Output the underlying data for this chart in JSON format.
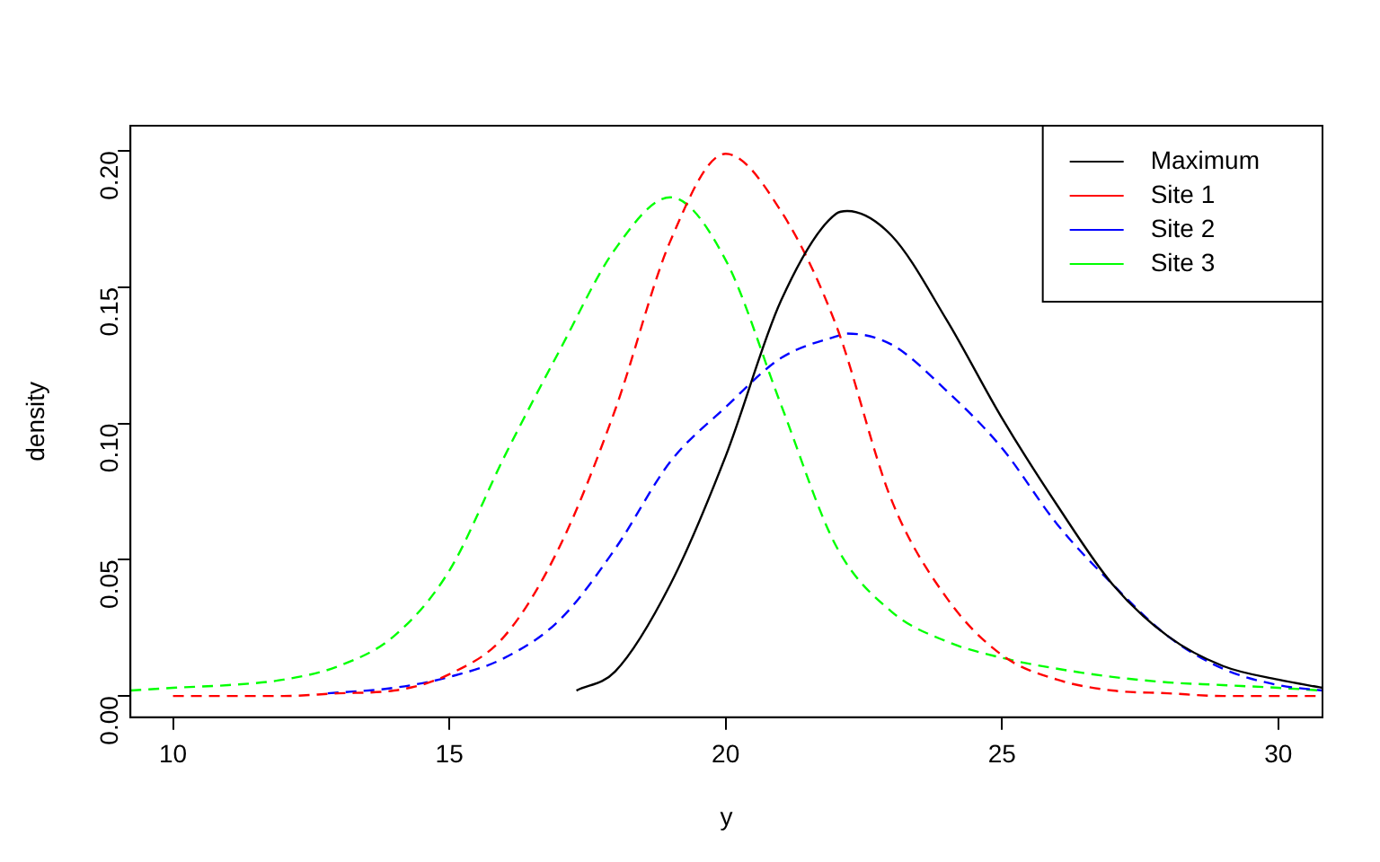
{
  "chart_data": {
    "type": "line",
    "xlabel": "y",
    "ylabel": "density",
    "xlim": [
      9.23,
      30.8
    ],
    "ylim": [
      -0.0078,
      0.2093
    ],
    "xticks": [
      10,
      15,
      20,
      25,
      30
    ],
    "yticks": [
      {
        "value": 0,
        "label": "0.00"
      },
      {
        "value": 0.05,
        "label": "0.05"
      },
      {
        "value": 0.1,
        "label": "0.10"
      },
      {
        "value": 0.15,
        "label": "0.15"
      },
      {
        "value": 0.2,
        "label": "0.20"
      }
    ],
    "grid": false,
    "legend": "top right",
    "marker": "none",
    "series": [
      {
        "name": "Maximum",
        "color": "#000000",
        "line_style": "solid",
        "x": [
          17.3,
          18,
          19,
          20,
          21,
          22,
          22.2,
          23,
          24,
          25,
          26,
          27,
          28,
          29,
          30,
          30.8
        ],
        "values": [
          0.002,
          0.009,
          0.041,
          0.088,
          0.145,
          0.177,
          0.178,
          0.169,
          0.138,
          0.102,
          0.07,
          0.041,
          0.022,
          0.011,
          0.006,
          0.003
        ]
      },
      {
        "name": "Site 1",
        "color": "#ff0000",
        "line_style": "dashed",
        "x": [
          10,
          11,
          12,
          13,
          14,
          15,
          16,
          17,
          18,
          19,
          20,
          21,
          22,
          23,
          24,
          25,
          26,
          27,
          28,
          29,
          30,
          30.8
        ],
        "values": [
          0,
          0,
          0,
          0.001,
          0.002,
          0.008,
          0.022,
          0.055,
          0.105,
          0.167,
          0.199,
          0.178,
          0.136,
          0.072,
          0.036,
          0.015,
          0.006,
          0.002,
          0.001,
          0,
          0,
          0
        ]
      },
      {
        "name": "Site 2",
        "color": "#0000ff",
        "line_style": "dashed",
        "x": [
          12.8,
          14,
          15,
          16,
          17,
          18,
          19,
          20,
          21,
          22,
          22.2,
          23,
          24,
          25,
          26,
          27,
          28,
          29,
          30,
          30.8
        ],
        "values": [
          0.001,
          0.003,
          0.007,
          0.014,
          0.028,
          0.054,
          0.086,
          0.106,
          0.124,
          0.132,
          0.133,
          0.129,
          0.112,
          0.091,
          0.063,
          0.041,
          0.022,
          0.01,
          0.004,
          0.002
        ]
      },
      {
        "name": "Site 3",
        "color": "#00ff00",
        "line_style": "dashed",
        "x": [
          9.23,
          10,
          11,
          12,
          13,
          14,
          15,
          16,
          17,
          18,
          19,
          20,
          21,
          22,
          23,
          24,
          25,
          26,
          27,
          28,
          29,
          30,
          30.8
        ],
        "values": [
          0.002,
          0.003,
          0.004,
          0.006,
          0.011,
          0.022,
          0.046,
          0.088,
          0.127,
          0.164,
          0.183,
          0.16,
          0.107,
          0.055,
          0.031,
          0.02,
          0.014,
          0.01,
          0.007,
          0.005,
          0.004,
          0.003,
          0.002
        ]
      }
    ]
  }
}
